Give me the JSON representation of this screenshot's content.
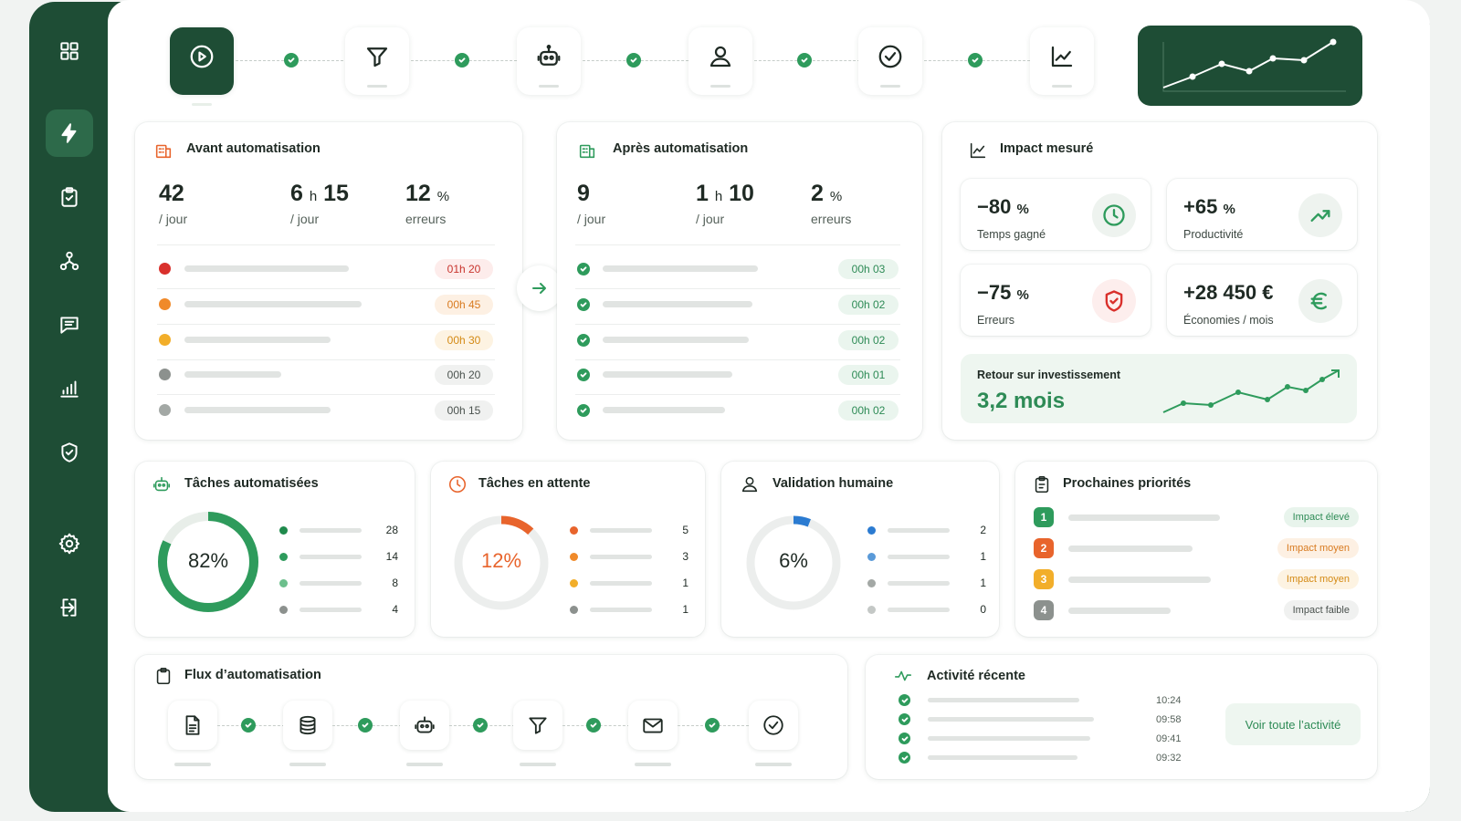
{
  "sidebar": {
    "items": [
      {
        "icon": "grid-icon"
      },
      {
        "icon": "lightning-icon"
      },
      {
        "icon": "clipboard-icon"
      },
      {
        "icon": "workflow-icon"
      },
      {
        "icon": "message-icon"
      },
      {
        "icon": "bar-chart-icon"
      },
      {
        "icon": "shield-icon"
      },
      {
        "icon": "settings-icon"
      },
      {
        "icon": "logout-icon"
      }
    ]
  },
  "pipeline": {
    "steps": [
      "play-icon",
      "filter-icon",
      "robot-icon",
      "user-icon",
      "check-circle-icon",
      "trend-icon"
    ]
  },
  "before": {
    "title": "Avant automatisation",
    "stats": [
      {
        "value": "42",
        "unit": "",
        "label": "/ jour"
      },
      {
        "value": "6",
        "mid": "h",
        "value2": "15",
        "label": "/ jour"
      },
      {
        "value": "12",
        "unit": "%",
        "label": "erreurs"
      }
    ],
    "rows": [
      {
        "color": "#d9302c",
        "time": "01h 20",
        "pill_bg": "#fdeceb",
        "pill_fg": "#c8342d"
      },
      {
        "color": "#f08a2a",
        "time": "00h 45",
        "pill_bg": "#fdf0e3",
        "pill_fg": "#d87a1f"
      },
      {
        "color": "#f2ae2a",
        "time": "00h 30",
        "pill_bg": "#fdf3e2",
        "pill_fg": "#d48a14"
      },
      {
        "color": "#8c918e",
        "time": "00h 20",
        "pill_bg": "#f0f1f0",
        "pill_fg": "#4a524e"
      },
      {
        "color": "#a3a8a5",
        "time": "00h 15",
        "pill_bg": "#f0f1f0",
        "pill_fg": "#4a524e"
      }
    ]
  },
  "after": {
    "title": "Après automatisation",
    "stats": [
      {
        "value": "9",
        "unit": "",
        "label": "/ jour"
      },
      {
        "value": "1",
        "mid": "h",
        "value2": "10",
        "label": "/ jour"
      },
      {
        "value": "2",
        "unit": "%",
        "label": "erreurs"
      }
    ],
    "rows": [
      {
        "time": "00h 03"
      },
      {
        "time": "00h 02"
      },
      {
        "time": "00h 02"
      },
      {
        "time": "00h 01"
      },
      {
        "time": "00h 02"
      }
    ]
  },
  "impact": {
    "title": "Impact mesuré",
    "metrics": [
      {
        "value": "−80",
        "unit": "%",
        "label": "Temps gagné",
        "icon": "clock-icon",
        "color": "#2e9b5c"
      },
      {
        "value": "+65",
        "unit": "%",
        "label": "Productivité",
        "icon": "trend-up-icon",
        "color": "#2e9b5c"
      },
      {
        "value": "−75",
        "unit": "%",
        "label": "Erreurs",
        "icon": "shield-check-icon",
        "color": "#d9302c"
      },
      {
        "value": "+28 450 €",
        "unit": "",
        "label": "Économies / mois",
        "icon": "euro-icon",
        "color": "#2e9b5c"
      }
    ],
    "roi_label": "Retour sur investissement",
    "roi_value": "3,2 mois"
  },
  "auto_tasks": {
    "title": "Tâches automatisées",
    "percent": "82%",
    "fraction": 0.82,
    "rows": [
      {
        "color": "#1f8a4c",
        "value": "28"
      },
      {
        "color": "#2e9b5c",
        "value": "14"
      },
      {
        "color": "#6cbf8c",
        "value": "8"
      },
      {
        "color": "#8c918e",
        "value": "4"
      }
    ]
  },
  "pending": {
    "title": "Tâches en attente",
    "percent": "12%",
    "fraction": 0.12,
    "rows": [
      {
        "color": "#e8642c",
        "value": "5"
      },
      {
        "color": "#f08a2a",
        "value": "3"
      },
      {
        "color": "#f2ae2a",
        "value": "1"
      },
      {
        "color": "#8c918e",
        "value": "1"
      }
    ]
  },
  "validation": {
    "title": "Validation humaine",
    "percent": "6%",
    "fraction": 0.06,
    "rows": [
      {
        "color": "#2b7bd1",
        "value": "2"
      },
      {
        "color": "#5a9ad8",
        "value": "1"
      },
      {
        "color": "#a3a8a5",
        "value": "1"
      },
      {
        "color": "#c4c8c6",
        "value": "0"
      }
    ]
  },
  "priorities": {
    "title": "Prochaines priorités",
    "items": [
      {
        "num": "1",
        "color": "#2e9b5c",
        "badge": "Impact élevé",
        "badge_bg": "#e8f4ec",
        "badge_fg": "#2e8b56"
      },
      {
        "num": "2",
        "color": "#e8642c",
        "badge": "Impact moyen",
        "badge_bg": "#fdf0e3",
        "badge_fg": "#d87a1f"
      },
      {
        "num": "3",
        "color": "#f2ae2a",
        "badge": "Impact moyen",
        "badge_bg": "#fdf3e2",
        "badge_fg": "#d48a14"
      },
      {
        "num": "4",
        "color": "#8c918e",
        "badge": "Impact faible",
        "badge_bg": "#f0f1f0",
        "badge_fg": "#4a524e"
      }
    ]
  },
  "flow": {
    "title": "Flux d’automatisation",
    "steps": [
      "document-icon",
      "database-icon",
      "robot-icon",
      "filter-icon",
      "mail-icon",
      "check-circle-icon"
    ]
  },
  "activity": {
    "title": "Activité récente",
    "times": [
      "10:24",
      "09:58",
      "09:41",
      "09:32"
    ],
    "button": "Voir toute l’activité"
  }
}
